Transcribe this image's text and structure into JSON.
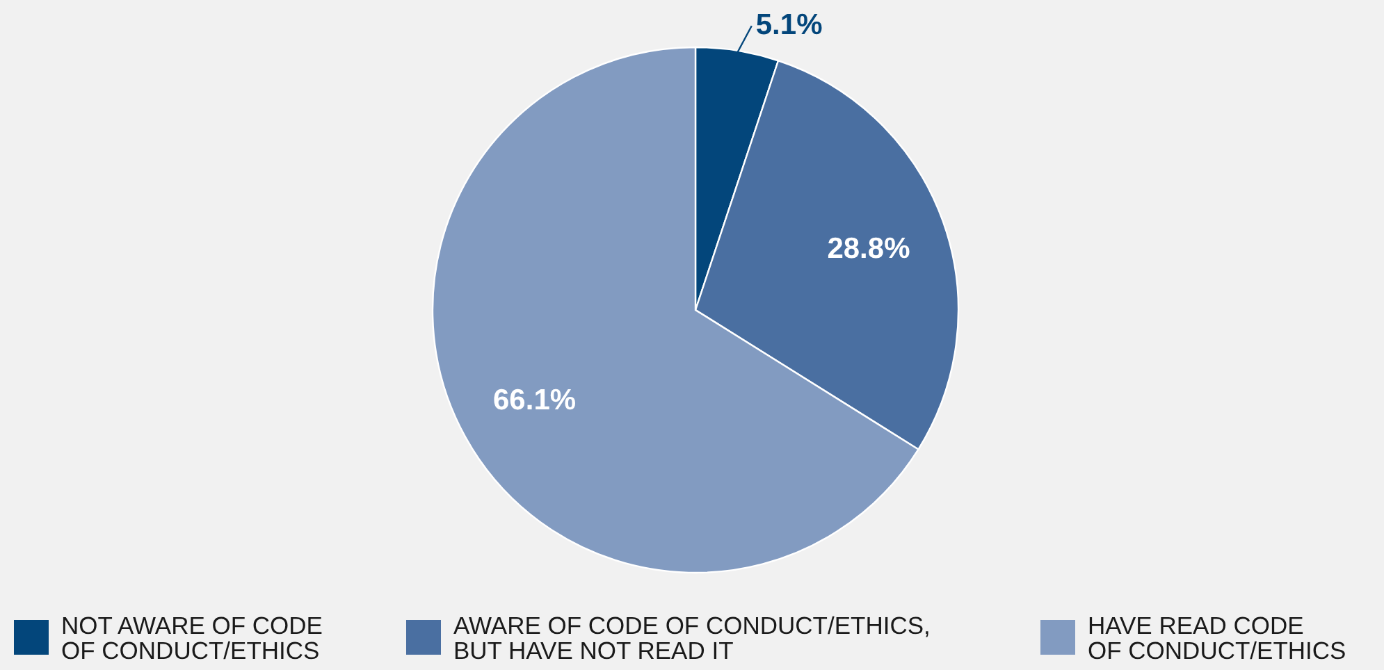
{
  "chart_data": {
    "type": "pie",
    "categories": [
      "NOT AWARE OF CODE OF CONDUCT/ETHICS",
      "AWARE OF CODE OF CONDUCT/ETHICS, BUT HAVE NOT READ IT",
      "HAVE READ CODE OF CONDUCT/ETHICS"
    ],
    "values": [
      5.1,
      28.8,
      66.1
    ],
    "colors": [
      "#03467b",
      "#4a6fa1",
      "#829bc1"
    ],
    "value_labels": [
      "5.1%",
      "28.8%",
      "66.1%"
    ],
    "legend": "bottom"
  }
}
